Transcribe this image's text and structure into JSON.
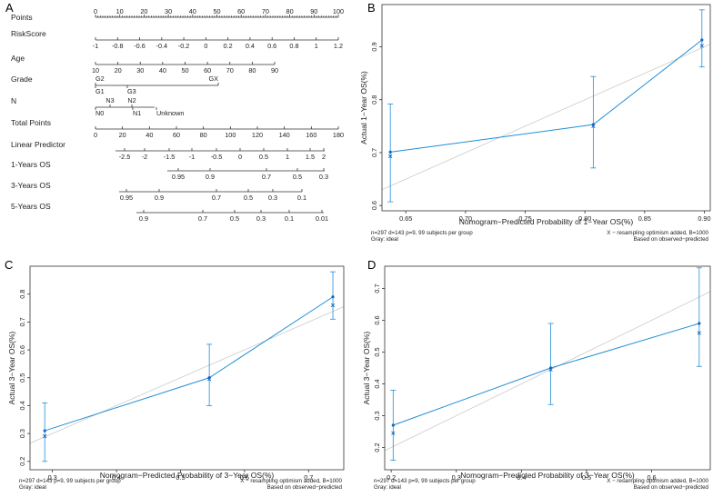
{
  "chart_data": {
    "nomogram": {
      "panel": "A",
      "rows": [
        {
          "label": "Points",
          "scale": {
            "min": 0,
            "max": 100
          },
          "ticks": [
            "0",
            "10",
            "20",
            "30",
            "40",
            "50",
            "60",
            "70",
            "80",
            "90",
            "100"
          ],
          "ticks_below": false
        },
        {
          "label": "RiskScore",
          "scale": {
            "min": -1,
            "max": 1.2
          },
          "ticks": [
            "-1",
            "-0.8",
            "-0.6",
            "-0.4",
            "-0.2",
            "0",
            "0.2",
            "0.4",
            "0.6",
            "0.8",
            "1",
            "1.2"
          ],
          "ticks_below": true
        },
        {
          "label": "Age",
          "scale": {
            "min": 10,
            "max": 90
          },
          "ticks": [
            "10",
            "20",
            "30",
            "40",
            "50",
            "60",
            "70",
            "80",
            "90"
          ],
          "ticks_below": true
        },
        {
          "label": "Grade",
          "categories_above": [
            "G2",
            "GX"
          ],
          "categories_below": [
            "G1",
            "G3"
          ]
        },
        {
          "label": "N",
          "categories_above": [
            "N3",
            "N2"
          ],
          "categories_below": [
            "N0",
            "N1",
            "Unknown"
          ]
        },
        {
          "label": "Total Points",
          "scale": {
            "min": 0,
            "max": 180
          },
          "ticks": [
            "0",
            "20",
            "40",
            "60",
            "80",
            "100",
            "120",
            "140",
            "160",
            "180"
          ],
          "ticks_below": true
        },
        {
          "label": "Linear Predictor",
          "ticks": [
            "-2.5",
            "-2",
            "-1.5",
            "-1",
            "-0.5",
            "0",
            "0.5",
            "1",
            "1.5",
            "2"
          ],
          "ticks_below": true
        },
        {
          "label": "1-Years OS",
          "ticks": [
            "0.95",
            "0.9",
            "0.7",
            "0.5",
            "0.3"
          ],
          "ticks_below": true
        },
        {
          "label": "3-Years OS",
          "ticks": [
            "0.95",
            "0.9",
            "0.7",
            "0.5",
            "0.3",
            "0.1"
          ],
          "ticks_below": true
        },
        {
          "label": "5-Years OS",
          "ticks": [
            "0.9",
            "0.7",
            "0.5",
            "0.3",
            "0.1",
            "0.01"
          ],
          "ticks_below": true
        }
      ]
    },
    "calibration": [
      {
        "panel": "B",
        "type": "line",
        "xlabel": "Nomogram−Predicted Probability of 1−Year OS(%)",
        "ylabel": "Actual 1−Year OS(%)",
        "xlim": [
          0.63,
          0.905
        ],
        "ylim": [
          0.59,
          0.98
        ],
        "xticks": [
          0.65,
          0.7,
          0.75,
          0.8,
          0.85,
          0.9
        ],
        "xtick_labels": [
          "0.65",
          "0.70",
          "0.75",
          "0.80",
          "0.85",
          "0.90"
        ],
        "yticks": [
          0.6,
          0.7,
          0.8,
          0.9
        ],
        "ytick_labels": [
          "0.6",
          "0.7",
          "0.8",
          "0.9"
        ],
        "points": [
          {
            "x": 0.637,
            "observed": 0.701,
            "corrected": 0.693,
            "lower": 0.607,
            "upper": 0.792
          },
          {
            "x": 0.807,
            "observed": 0.753,
            "corrected": 0.75,
            "lower": 0.671,
            "upper": 0.844
          },
          {
            "x": 0.898,
            "observed": 0.913,
            "corrected": 0.902,
            "lower": 0.862,
            "upper": 0.97
          }
        ],
        "footer_left": [
          "n=297 d=143 p=9, 99 subjects per group",
          "Gray: ideal"
        ],
        "footer_right": [
          "X − resampling optimism added, B=1000",
          "Based on observed−predicted"
        ]
      },
      {
        "panel": "C",
        "type": "line",
        "xlabel": "Nomogram−Predicted Probability of 3−Year OS(%)",
        "ylabel": "Actual 3−Year OS(%)",
        "xlim": [
          0.265,
          0.755
        ],
        "ylim": [
          0.17,
          0.9
        ],
        "xticks": [
          0.3,
          0.4,
          0.5,
          0.6,
          0.7
        ],
        "xtick_labels": [
          "0.3",
          "0.4",
          "0.5",
          "0.6",
          "0.7"
        ],
        "yticks": [
          0.2,
          0.3,
          0.4,
          0.5,
          0.6,
          0.7,
          0.8
        ],
        "ytick_labels": [
          "0.2",
          "0.3",
          "0.4",
          "0.5",
          "0.6",
          "0.7",
          "0.8"
        ],
        "points": [
          {
            "x": 0.288,
            "observed": 0.31,
            "corrected": 0.29,
            "lower": 0.2,
            "upper": 0.41
          },
          {
            "x": 0.545,
            "observed": 0.5,
            "corrected": 0.495,
            "lower": 0.4,
            "upper": 0.62
          },
          {
            "x": 0.738,
            "observed": 0.79,
            "corrected": 0.76,
            "lower": 0.71,
            "upper": 0.88
          }
        ],
        "footer_left": [
          "n=297 d=143 p=9, 99 subjects per group",
          "Gray: ideal"
        ],
        "footer_right": [
          "X − resampling optimism added, B=1000",
          "Based on observed−predicted"
        ]
      },
      {
        "panel": "D",
        "type": "line",
        "xlabel": "Nomogram−Predicted Probability of 3−Year OS(%)",
        "ylabel": "Actual 3−Year OS(%)",
        "xlim": [
          0.19,
          0.69
        ],
        "ylim": [
          0.13,
          0.77
        ],
        "xticks": [
          0.2,
          0.3,
          0.4,
          0.5,
          0.6
        ],
        "xtick_labels": [
          "0.2",
          "0.3",
          "0.4",
          "0.5",
          "0.6"
        ],
        "yticks": [
          0.2,
          0.3,
          0.4,
          0.5,
          0.6,
          0.7
        ],
        "ytick_labels": [
          "0.2",
          "0.3",
          "0.4",
          "0.5",
          "0.6",
          "0.7"
        ],
        "points": [
          {
            "x": 0.203,
            "observed": 0.27,
            "corrected": 0.245,
            "lower": 0.16,
            "upper": 0.38
          },
          {
            "x": 0.445,
            "observed": 0.45,
            "corrected": 0.445,
            "lower": 0.335,
            "upper": 0.59
          },
          {
            "x": 0.673,
            "observed": 0.59,
            "corrected": 0.56,
            "lower": 0.455,
            "upper": 0.765
          }
        ],
        "footer_left": [
          "n=297 d=143 p=9, 99 subjects per group",
          "Gray: ideal"
        ],
        "footer_right": [
          "X − resampling optimism added, B=1000",
          "Based on observed−predicted"
        ]
      }
    ]
  },
  "colors": {
    "series": "#1f8fd6",
    "marker": "#1565c0",
    "ideal": "#cccccc",
    "axis": "#333333"
  }
}
